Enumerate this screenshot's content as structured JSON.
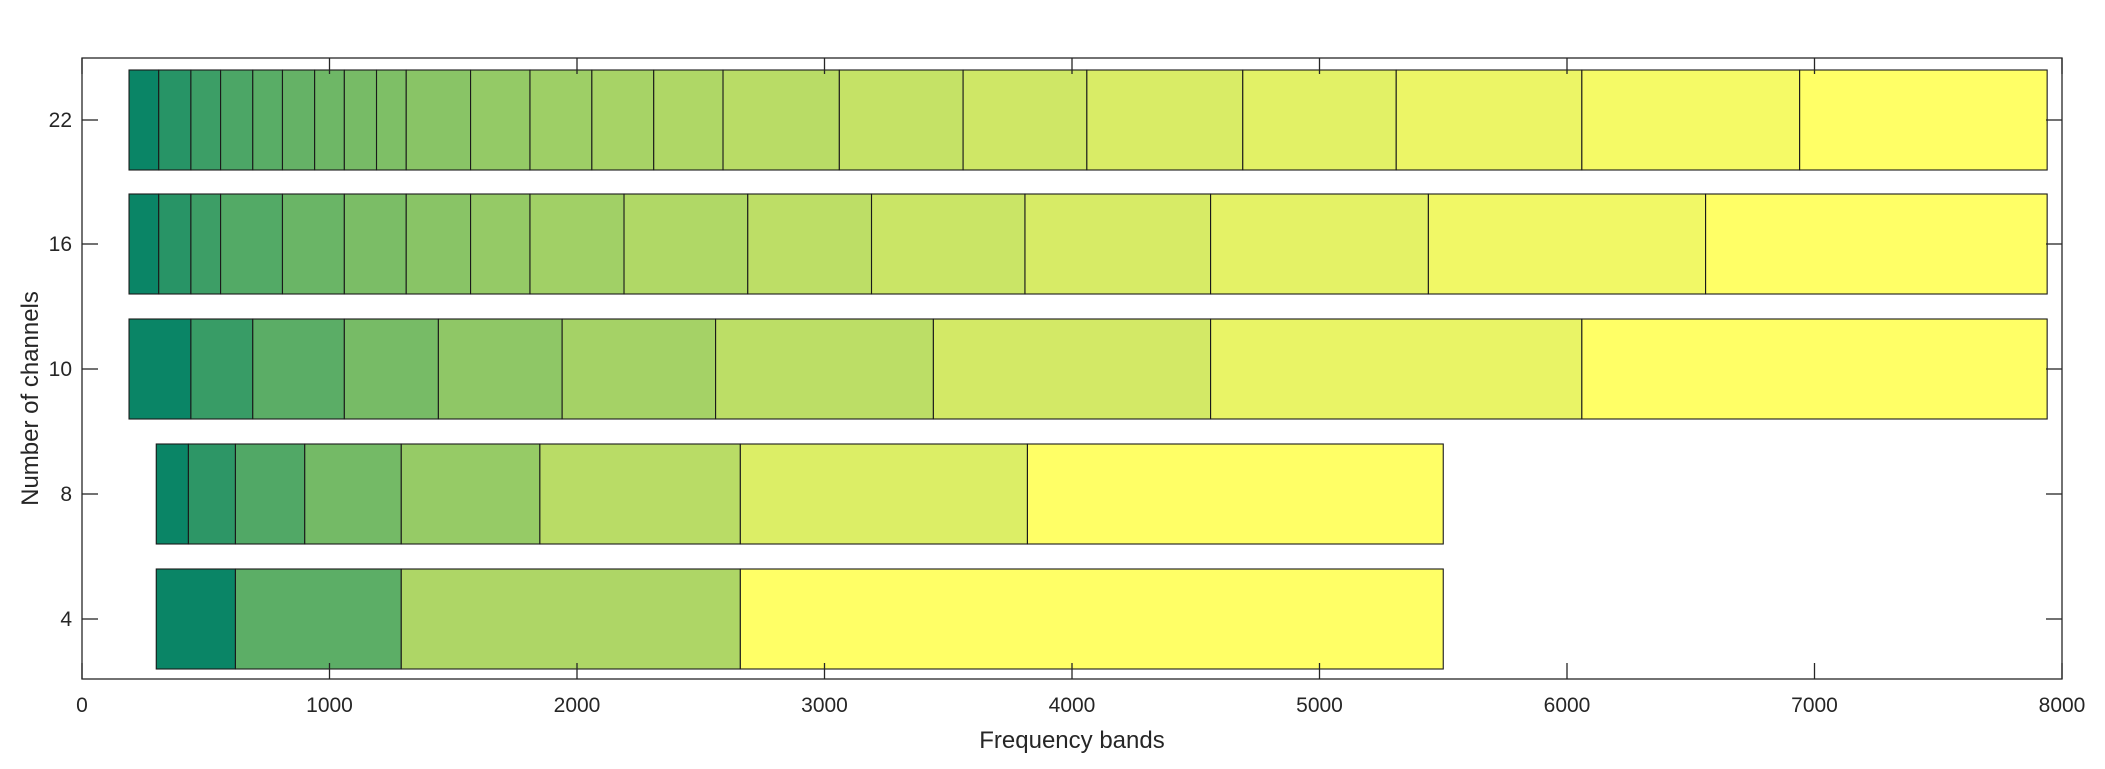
{
  "chart_data": {
    "type": "bar",
    "orientation": "horizontal",
    "stacked": true,
    "title": "",
    "xlabel": "Frequency bands",
    "ylabel": "Number of channels",
    "xlim": [
      0,
      8000
    ],
    "xticks": [
      0,
      1000,
      2000,
      3000,
      4000,
      5000,
      6000,
      7000,
      8000
    ],
    "grid": false,
    "legend": "none",
    "colormap": "summer",
    "categories": [
      "4",
      "8",
      "10",
      "16",
      "22"
    ],
    "rows": [
      {
        "label": "4",
        "edges": [
          300,
          620,
          1290,
          2660,
          5500
        ]
      },
      {
        "label": "8",
        "edges": [
          300,
          430,
          620,
          900,
          1290,
          1850,
          2660,
          3820,
          5500
        ]
      },
      {
        "label": "10",
        "edges": [
          190,
          440,
          690,
          1060,
          1440,
          1940,
          2560,
          3440,
          4560,
          6060,
          7940
        ]
      },
      {
        "label": "16",
        "edges": [
          190,
          310,
          440,
          560,
          810,
          1060,
          1310,
          1570,
          1810,
          2190,
          2690,
          3190,
          3810,
          4560,
          5440,
          6560,
          7940
        ]
      },
      {
        "label": "22",
        "edges": [
          190,
          310,
          440,
          560,
          690,
          810,
          940,
          1060,
          1190,
          1310,
          1570,
          1810,
          2060,
          2310,
          2590,
          3060,
          3560,
          4060,
          4690,
          5310,
          6060,
          6940,
          7940
        ]
      }
    ]
  }
}
